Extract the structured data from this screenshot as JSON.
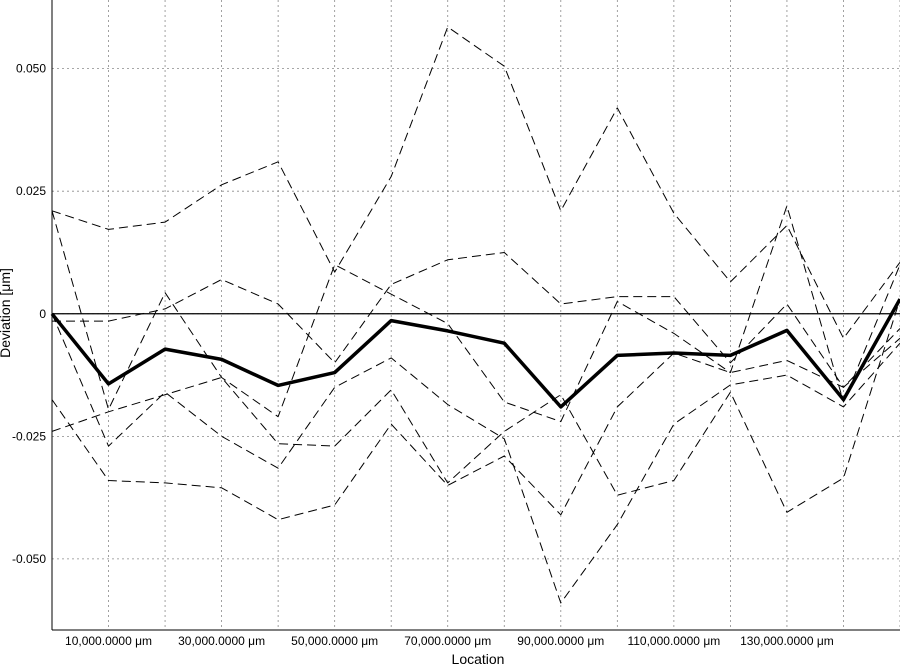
{
  "chart_data": {
    "type": "line",
    "title": "",
    "xlabel": "Location",
    "ylabel": "Deviation [μm]",
    "x": [
      0,
      10000,
      20000,
      30000,
      40000,
      50000,
      60000,
      70000,
      80000,
      90000,
      100000,
      110000,
      120000,
      130000,
      140000,
      150000
    ],
    "xlim": [
      0,
      150000
    ],
    "ylim": [
      -0.0645,
      0.064
    ],
    "grid": true,
    "x_ticks": [
      {
        "value": 10000,
        "label": "10,000.0000 μm"
      },
      {
        "value": 30000,
        "label": "30,000.0000 μm"
      },
      {
        "value": 50000,
        "label": "50,000.0000 μm"
      },
      {
        "value": 70000,
        "label": "70,000.0000 μm"
      },
      {
        "value": 90000,
        "label": "90,000.0000 μm"
      },
      {
        "value": 110000,
        "label": "110,000.0000 μm"
      },
      {
        "value": 130000,
        "label": "130,000.0000 μm"
      }
    ],
    "y_ticks": [
      {
        "value": 0.05,
        "label": "0.050"
      },
      {
        "value": 0.025,
        "label": "0.025"
      },
      {
        "value": 0,
        "label": "0"
      },
      {
        "value": -0.025,
        "label": "-0.025"
      },
      {
        "value": -0.05,
        "label": "-0.050"
      }
    ],
    "series": [
      {
        "style": "bold",
        "values": [
          0.0,
          -0.0143,
          -0.0072,
          -0.0093,
          -0.0146,
          -0.012,
          -0.0014,
          -0.0035,
          -0.006,
          -0.019,
          -0.0085,
          -0.008,
          -0.0085,
          -0.0034,
          -0.0175,
          0.003
        ]
      },
      {
        "style": "dashed",
        "values": [
          0.021,
          0.0172,
          0.0187,
          0.0263,
          0.031,
          0.0085,
          0.028,
          0.0585,
          0.0505,
          0.021,
          0.042,
          0.0205,
          0.0065,
          0.018,
          -0.005,
          0.0105
        ]
      },
      {
        "style": "dashed",
        "values": [
          0.021,
          -0.0195,
          0.0043,
          -0.013,
          -0.021,
          0.01,
          0.004,
          -0.002,
          -0.018,
          -0.022,
          0.0025,
          -0.004,
          -0.012,
          0.022,
          -0.018,
          0.01
        ]
      },
      {
        "style": "dashed",
        "values": [
          -0.0015,
          -0.0015,
          0.001,
          0.007,
          0.002,
          -0.01,
          0.006,
          0.011,
          0.0125,
          0.002,
          0.0035,
          0.0035,
          -0.01,
          0.002,
          -0.015,
          -0.005
        ]
      },
      {
        "style": "dashed",
        "values": [
          -0.0175,
          -0.034,
          -0.0345,
          -0.0355,
          -0.042,
          -0.039,
          -0.0225,
          -0.035,
          -0.029,
          -0.041,
          -0.019,
          -0.008,
          -0.012,
          -0.0095,
          -0.015,
          -0.003
        ]
      },
      {
        "style": "dashed",
        "values": [
          -0.024,
          -0.02,
          -0.0165,
          -0.013,
          -0.0265,
          -0.027,
          -0.0155,
          -0.0345,
          -0.024,
          -0.0165,
          -0.037,
          -0.034,
          -0.016,
          -0.0405,
          -0.0335,
          0.003
        ]
      },
      {
        "style": "dashed",
        "values": [
          0.0,
          -0.027,
          -0.016,
          -0.025,
          -0.0315,
          -0.015,
          -0.009,
          -0.0185,
          -0.0255,
          -0.059,
          -0.043,
          -0.0225,
          -0.0145,
          -0.0125,
          -0.019,
          -0.006
        ]
      }
    ]
  }
}
